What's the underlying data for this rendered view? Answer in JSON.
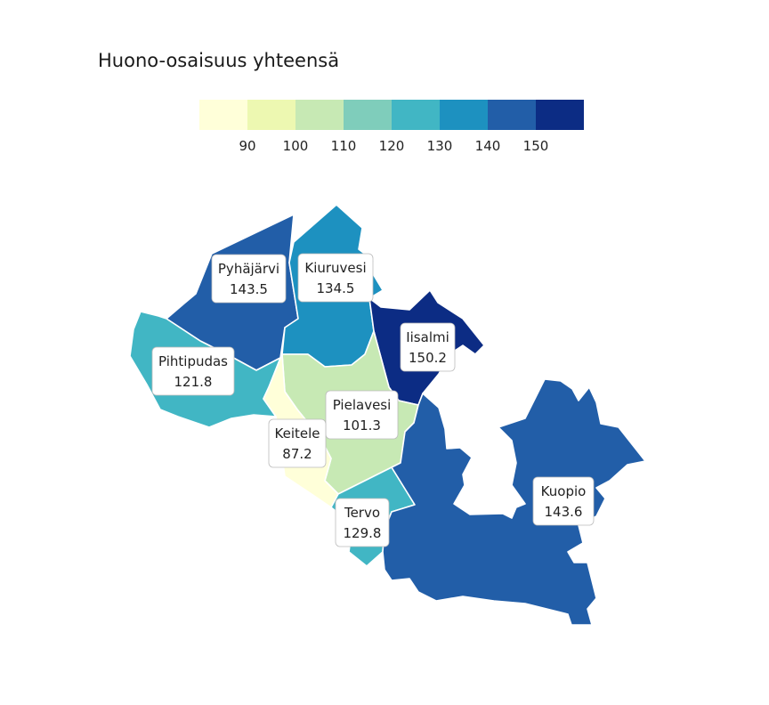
{
  "title": "Huono-osaisuus yhteensä",
  "legend": {
    "colors": [
      "#ffffd9",
      "#edf8b1",
      "#c7e9b4",
      "#7fcdbb",
      "#41b6c4",
      "#1d91c0",
      "#225ea8",
      "#0c2c84"
    ],
    "ticks": [
      "90",
      "100",
      "110",
      "120",
      "130",
      "140",
      "150"
    ]
  },
  "regions": [
    {
      "id": "pyhajarvi",
      "name": "Pyhäjärvi",
      "value": "143.5",
      "color": "#225ea8"
    },
    {
      "id": "kiuruvesi",
      "name": "Kiuruvesi",
      "value": "134.5",
      "color": "#1d91c0"
    },
    {
      "id": "iisalmi",
      "name": "Iisalmi",
      "value": "150.2",
      "color": "#0c2c84"
    },
    {
      "id": "pihtipudas",
      "name": "Pihtipudas",
      "value": "121.8",
      "color": "#41b6c4"
    },
    {
      "id": "pielavesi",
      "name": "Pielavesi",
      "value": "101.3",
      "color": "#c7e9b4"
    },
    {
      "id": "keitele",
      "name": "Keitele",
      "value": "87.2",
      "color": "#ffffd9"
    },
    {
      "id": "tervo",
      "name": "Tervo",
      "value": "129.8",
      "color": "#41b6c4"
    },
    {
      "id": "kuopio",
      "name": "Kuopio",
      "value": "143.6",
      "color": "#225ea8"
    }
  ]
}
